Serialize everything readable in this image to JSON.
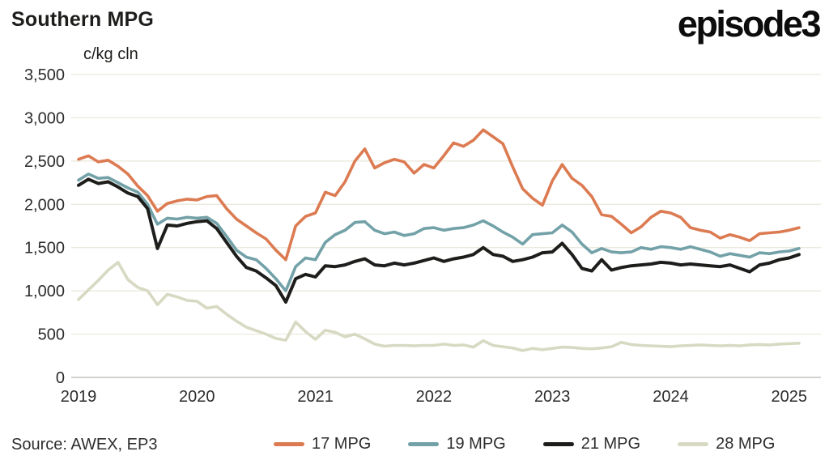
{
  "header": {
    "title": "Southern MPG",
    "logo": "episode3"
  },
  "footer": {
    "source": "Source: AWEX, EP3"
  },
  "colors": {
    "orange": "#DC7B52",
    "teal": "#73A1A8",
    "black": "#1D1D1B",
    "beige": "#D8D9C3",
    "gridline": "#E9E7DA",
    "axis_line": "#C4C4BF",
    "text": "#1D1D1B"
  },
  "chart_data": {
    "type": "line",
    "title": "Southern MPG",
    "unit_label": "c/kg cln",
    "xlabel": "",
    "ylabel": "c/kg cln",
    "ylim": [
      0,
      3500
    ],
    "y_ticks": [
      0,
      500,
      1000,
      1500,
      2000,
      2500,
      3000,
      3500
    ],
    "x_tick_labels": [
      "2019",
      "2020",
      "2021",
      "2022",
      "2023",
      "2024",
      "2025"
    ],
    "x_start": "2019-01",
    "x_step": "monthly",
    "grid": "horizontal",
    "legend_position": "bottom",
    "series": [
      {
        "name": "17 MPG",
        "color": "#DC7B52",
        "values": [
          2520,
          2560,
          2490,
          2510,
          2440,
          2350,
          2210,
          2100,
          1920,
          2010,
          2040,
          2060,
          2050,
          2090,
          2100,
          1950,
          1830,
          1750,
          1670,
          1600,
          1470,
          1360,
          1750,
          1860,
          1900,
          2140,
          2100,
          2260,
          2500,
          2640,
          2420,
          2480,
          2520,
          2490,
          2360,
          2460,
          2420,
          2560,
          2710,
          2670,
          2740,
          2860,
          2780,
          2700,
          2430,
          2180,
          2070,
          1990,
          2270,
          2460,
          2300,
          2220,
          2090,
          1880,
          1860,
          1770,
          1670,
          1740,
          1850,
          1920,
          1900,
          1850,
          1730,
          1700,
          1680,
          1610,
          1650,
          1620,
          1580,
          1660,
          1670,
          1680,
          1700,
          1730
        ]
      },
      {
        "name": "19 MPG",
        "color": "#73A1A8",
        "values": [
          2280,
          2350,
          2300,
          2310,
          2250,
          2190,
          2140,
          2000,
          1770,
          1840,
          1830,
          1850,
          1840,
          1850,
          1780,
          1630,
          1470,
          1390,
          1360,
          1260,
          1140,
          1000,
          1280,
          1380,
          1360,
          1560,
          1650,
          1700,
          1790,
          1800,
          1700,
          1660,
          1680,
          1640,
          1660,
          1720,
          1730,
          1700,
          1720,
          1730,
          1760,
          1810,
          1750,
          1680,
          1620,
          1540,
          1650,
          1660,
          1670,
          1760,
          1680,
          1540,
          1440,
          1490,
          1450,
          1440,
          1450,
          1500,
          1480,
          1510,
          1500,
          1480,
          1510,
          1480,
          1450,
          1400,
          1430,
          1410,
          1390,
          1440,
          1430,
          1450,
          1460,
          1490
        ]
      },
      {
        "name": "21 MPG",
        "color": "#1D1D1B",
        "values": [
          2220,
          2290,
          2240,
          2260,
          2200,
          2130,
          2090,
          1950,
          1490,
          1760,
          1750,
          1780,
          1800,
          1810,
          1720,
          1560,
          1400,
          1270,
          1230,
          1150,
          1060,
          870,
          1140,
          1190,
          1160,
          1290,
          1280,
          1300,
          1340,
          1370,
          1300,
          1290,
          1320,
          1300,
          1320,
          1350,
          1380,
          1340,
          1370,
          1390,
          1420,
          1500,
          1420,
          1400,
          1340,
          1360,
          1390,
          1440,
          1450,
          1550,
          1420,
          1260,
          1230,
          1360,
          1240,
          1270,
          1290,
          1300,
          1310,
          1330,
          1320,
          1300,
          1310,
          1300,
          1290,
          1280,
          1300,
          1260,
          1220,
          1300,
          1320,
          1360,
          1380,
          1420
        ]
      },
      {
        "name": "28 MPG",
        "color": "#D8D9C3",
        "values": [
          900,
          1010,
          1120,
          1240,
          1330,
          1130,
          1040,
          1000,
          840,
          960,
          930,
          890,
          880,
          800,
          820,
          730,
          650,
          580,
          540,
          500,
          450,
          430,
          640,
          530,
          440,
          545,
          520,
          470,
          500,
          445,
          385,
          360,
          370,
          370,
          365,
          370,
          370,
          385,
          370,
          375,
          350,
          425,
          370,
          355,
          340,
          310,
          335,
          320,
          335,
          350,
          345,
          335,
          330,
          340,
          355,
          405,
          380,
          370,
          365,
          360,
          355,
          365,
          370,
          375,
          370,
          365,
          370,
          365,
          375,
          380,
          375,
          385,
          390,
          395
        ]
      }
    ]
  }
}
